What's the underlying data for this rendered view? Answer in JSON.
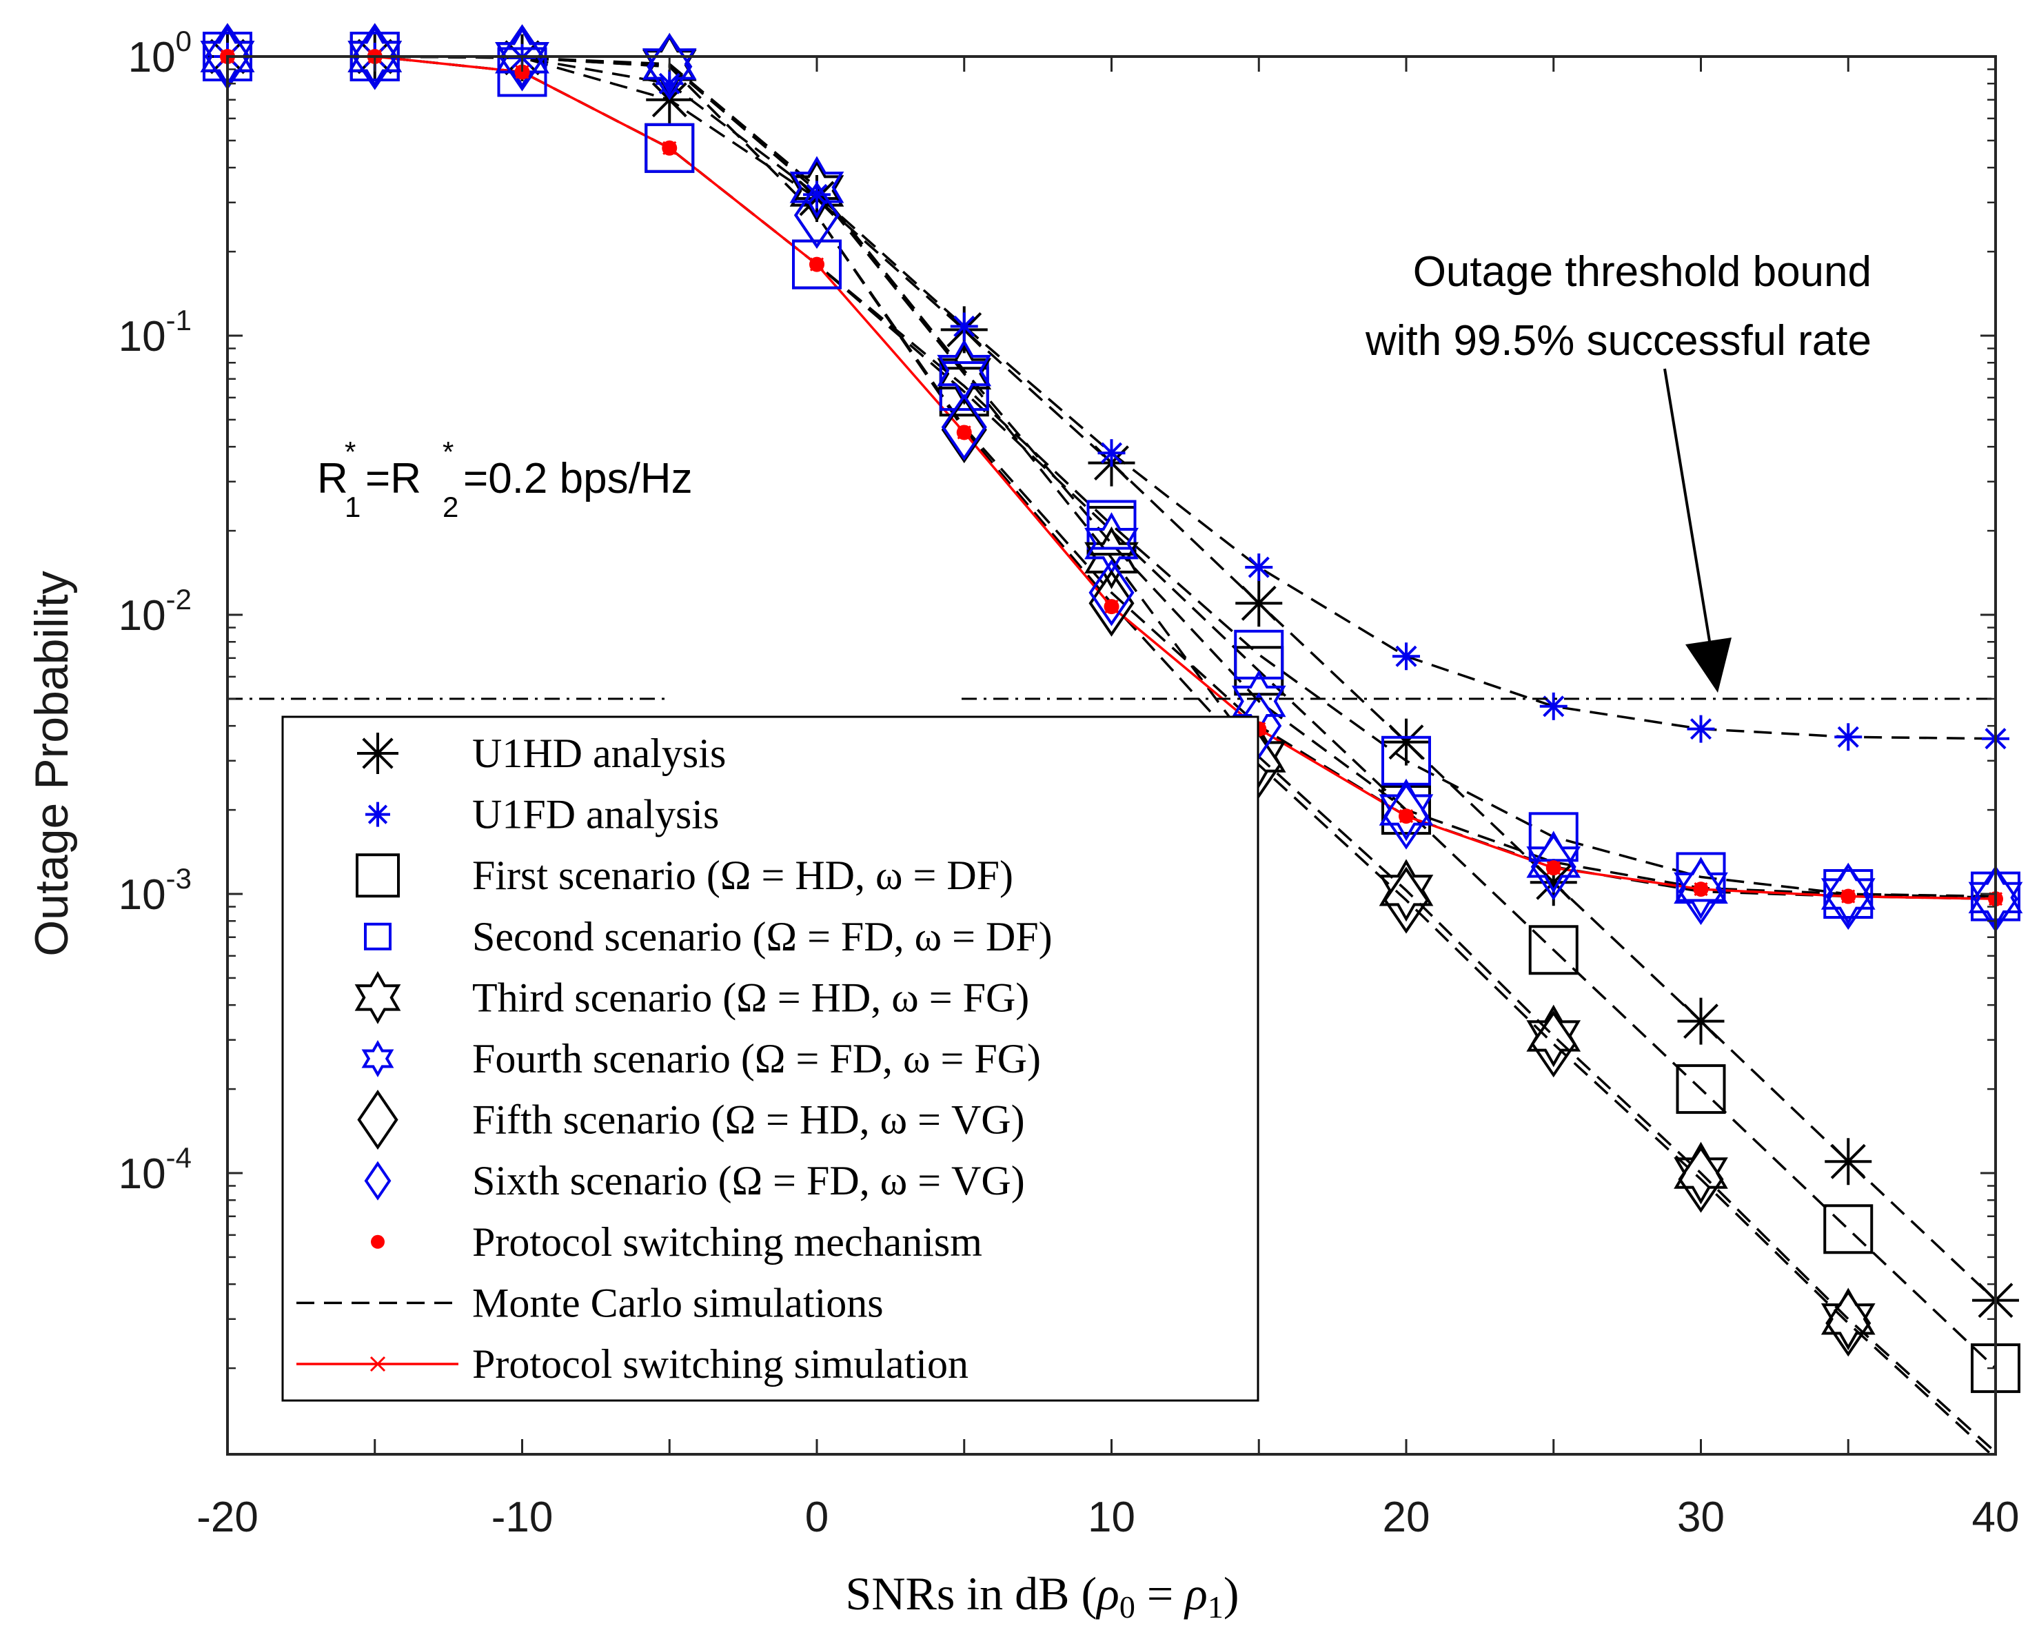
{
  "chart_data": {
    "type": "line",
    "yscale": "log",
    "xlabel": "SNRs in dB (ρ0 = ρ1)",
    "ylabel": "Outage Probability",
    "xlim": [
      -20,
      40
    ],
    "ylim": [
      1e-05,
      1
    ],
    "xticks": [
      "-20",
      "-10",
      "0",
      "10",
      "20",
      "30",
      "40"
    ],
    "yticks": [
      {
        "base": "10",
        "exp": "0",
        "value": 1
      },
      {
        "base": "10",
        "exp": "-1",
        "value": 0.1
      },
      {
        "base": "10",
        "exp": "-2",
        "value": 0.01
      },
      {
        "base": "10",
        "exp": "-3",
        "value": 0.001
      },
      {
        "base": "10",
        "exp": "-4",
        "value": 0.0001
      }
    ],
    "x": [
      -20,
      -15,
      -10,
      -5,
      0,
      5,
      10,
      15,
      20,
      25,
      30,
      35,
      40
    ],
    "threshold": {
      "value": 0.005
    },
    "annotations": {
      "threshold_line1": "Outage threshold bound",
      "threshold_line2": "with 99.5% successful rate",
      "rate_label": "R1*=R2*=0.2 bps/Hz"
    },
    "series": [
      {
        "name": "U1HD analysis",
        "marker": "asterisk",
        "color": "#000000",
        "values": [
          1,
          1,
          0.99,
          0.7,
          0.31,
          0.105,
          0.035,
          0.011,
          0.0035,
          0.0011,
          0.00035,
          0.00011,
          3.5e-05
        ]
      },
      {
        "name": "U1FD analysis",
        "marker": "star",
        "color": "#0000ee",
        "values": [
          1,
          1,
          0.99,
          0.8,
          0.32,
          0.108,
          0.038,
          0.0148,
          0.0071,
          0.0047,
          0.0039,
          0.00365,
          0.0036
        ]
      },
      {
        "name": "First scenario",
        "marker": "square",
        "color": "#000000",
        "values": [
          1,
          1,
          0.88,
          0.47,
          0.18,
          0.063,
          0.02,
          0.0063,
          0.002,
          0.00063,
          0.0002,
          6.3e-05,
          2e-05
        ]
      },
      {
        "name": "Second scenario",
        "marker": "square",
        "color": "#0000ee",
        "values": [
          1,
          1,
          0.88,
          0.47,
          0.18,
          0.066,
          0.021,
          0.0072,
          0.003,
          0.0016,
          0.00115,
          0.001,
          0.00098
        ]
      },
      {
        "name": "Third scenario",
        "marker": "hexagram",
        "color": "#000000",
        "values": [
          1,
          1,
          0.99,
          0.93,
          0.33,
          0.073,
          0.016,
          0.0031,
          0.00103,
          0.00031,
          0.0001,
          3e-05,
          1e-05
        ]
      },
      {
        "name": "Fourth scenario",
        "marker": "hexagram",
        "color": "#0000ee",
        "values": [
          1,
          1,
          0.99,
          0.94,
          0.34,
          0.075,
          0.018,
          0.0049,
          0.002,
          0.0013,
          0.00105,
          0.001,
          0.00097
        ]
      },
      {
        "name": "Fifth scenario",
        "marker": "diamond",
        "color": "#000000",
        "values": [
          1,
          1,
          0.99,
          0.92,
          0.27,
          0.046,
          0.011,
          0.0029,
          0.00095,
          0.00029,
          9.5e-05,
          2.9e-05,
          9.5e-06
        ]
      },
      {
        "name": "Sixth scenario",
        "marker": "diamond",
        "color": "#0000ee",
        "values": [
          1,
          1,
          0.99,
          0.92,
          0.27,
          0.047,
          0.012,
          0.004,
          0.0019,
          0.00125,
          0.00102,
          0.00098,
          0.00096
        ]
      },
      {
        "name": "Protocol switching mechanism",
        "marker": "dot",
        "color": "#ff0000",
        "values": [
          1,
          1,
          0.88,
          0.47,
          0.18,
          0.045,
          0.0107,
          0.0039,
          0.0019,
          0.00124,
          0.00104,
          0.00098,
          0.00096
        ]
      }
    ],
    "legend": {
      "placement": "center-left",
      "entries": [
        {
          "label": "U1HD analysis"
        },
        {
          "label": "U1FD analysis"
        },
        {
          "label": "First scenario (Ω = HD, ω = DF)"
        },
        {
          "label": "Second scenario (Ω = FD, ω = DF)"
        },
        {
          "label": "Third scenario (Ω = HD, ω = FG)"
        },
        {
          "label": "Fourth scenario (Ω = FD, ω = FG)"
        },
        {
          "label": "Fifth scenario (Ω = HD, ω = VG)"
        },
        {
          "label": "Sixth scenario (Ω = FD, ω = VG)"
        },
        {
          "label": "Protocol switching mechanism"
        },
        {
          "label": "Monte Carlo simulations"
        },
        {
          "label": "Protocol switching simulation"
        }
      ]
    },
    "grid": false
  },
  "colors": {
    "black": "#000000",
    "blue": "#0000ee",
    "red": "#ff0000"
  }
}
